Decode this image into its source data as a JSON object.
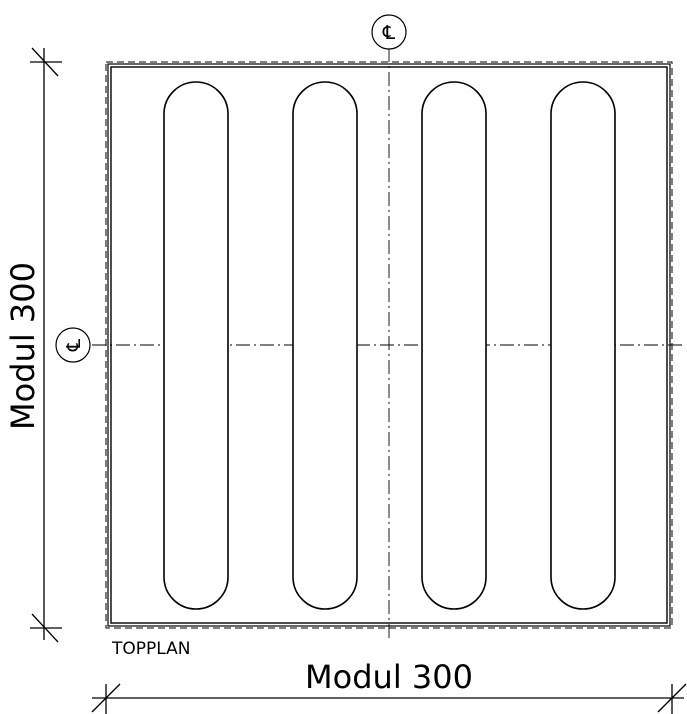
{
  "labels": {
    "vertical_dimension": "Modul 300",
    "horizontal_dimension": "Modul 300",
    "plan_label": "TOPPLAN",
    "centerline_symbol_top": "℄",
    "centerline_symbol_left": "℄"
  },
  "tile": {
    "shape": "square",
    "stud_type": "elongated bars",
    "bar_count": 4
  },
  "colors": {
    "line": "#000000",
    "background": "#ffffff"
  }
}
